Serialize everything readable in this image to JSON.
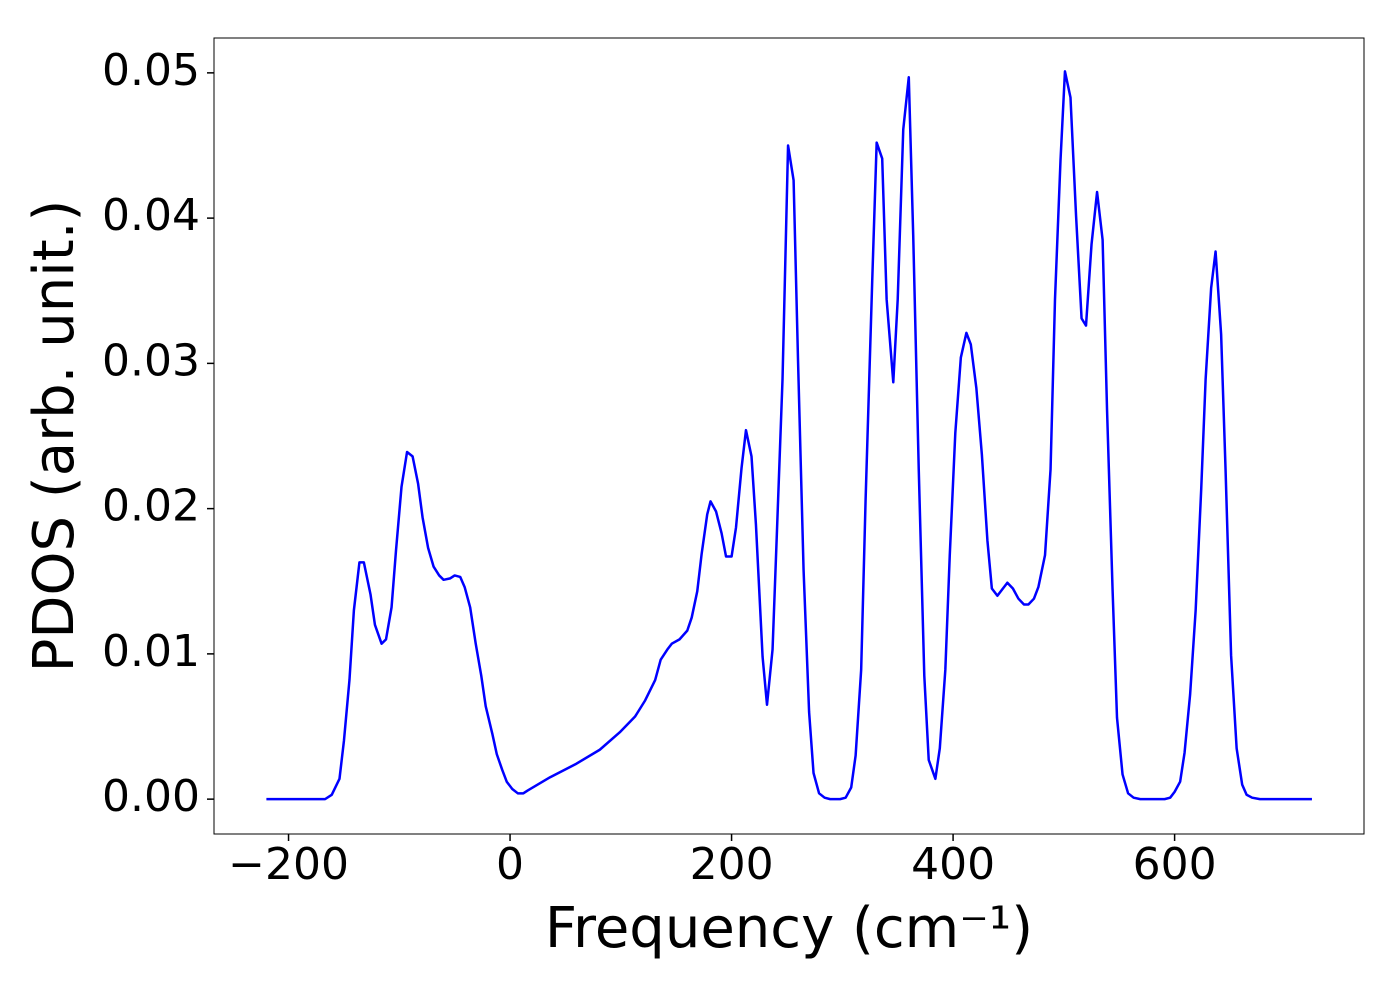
{
  "chart_data": {
    "type": "line",
    "xlabel": "Frequency (cm⁻¹)",
    "ylabel": "PDOS (arb. unit.)",
    "color": "#0000ff",
    "xlim": [
      -267.3,
      771
    ],
    "ylim": [
      -0.0024,
      0.0524
    ],
    "xticks": [
      {
        "value": -200,
        "label": "−200"
      },
      0,
      200,
      400,
      600
    ],
    "yticks": [
      {
        "value": 0,
        "label": "0.00"
      },
      0.01,
      0.02,
      0.03,
      0.04,
      0.05
    ],
    "x": [
      -220,
      -167,
      -161,
      -154,
      -150,
      -145,
      -141,
      -136,
      -132,
      -126,
      -122,
      -116,
      -112,
      -107,
      -103,
      -98,
      -93,
      -88,
      -83,
      -79,
      -74,
      -69,
      -64,
      -60,
      -54,
      -50,
      -45,
      -41,
      -36,
      -31,
      -26,
      -22,
      -16,
      -12,
      -7,
      -3,
      2,
      7,
      12,
      16,
      36,
      59,
      81,
      99,
      113,
      122,
      131,
      136,
      142,
      146,
      153,
      160,
      164,
      169,
      173,
      178,
      181,
      186,
      191,
      195,
      200,
      204,
      209,
      213,
      218,
      222,
      228,
      232,
      237,
      241,
      246,
      251,
      256,
      260,
      265,
      270,
      274,
      279,
      284,
      289,
      298,
      303,
      308,
      312,
      317,
      321,
      327,
      331,
      336,
      340,
      346,
      350,
      355,
      360,
      364,
      369,
      374,
      378,
      384,
      388,
      393,
      397,
      402,
      407,
      412,
      416,
      421,
      426,
      431,
      435,
      440,
      445,
      449,
      454,
      459,
      464,
      468,
      473,
      477,
      483,
      488,
      492,
      497,
      501,
      506,
      511,
      516,
      520,
      525,
      530,
      535,
      539,
      544,
      548,
      553,
      558,
      563,
      569,
      591,
      596,
      600,
      605,
      609,
      614,
      619,
      624,
      628,
      633,
      637,
      642,
      646,
      651,
      656,
      661,
      665,
      670,
      677,
      724
    ],
    "values": [
      0,
      0,
      0.0003,
      0.0014,
      0.004,
      0.0082,
      0.013,
      0.0163,
      0.0163,
      0.0141,
      0.012,
      0.0107,
      0.011,
      0.0132,
      0.0171,
      0.0215,
      0.0239,
      0.0236,
      0.0217,
      0.0194,
      0.0173,
      0.016,
      0.0154,
      0.0151,
      0.0152,
      0.0154,
      0.0153,
      0.0146,
      0.0132,
      0.0107,
      0.0085,
      0.0064,
      0.0045,
      0.0031,
      0.002,
      0.0012,
      0.0007,
      0.0004,
      0.0004,
      0.0006,
      0.0015,
      0.0024,
      0.0034,
      0.0046,
      0.0057,
      0.0068,
      0.0082,
      0.0096,
      0.0103,
      0.0107,
      0.011,
      0.0116,
      0.0125,
      0.0143,
      0.0169,
      0.0196,
      0.0205,
      0.0198,
      0.0183,
      0.0167,
      0.0167,
      0.0187,
      0.0228,
      0.0254,
      0.0236,
      0.0189,
      0.0098,
      0.0065,
      0.0103,
      0.0185,
      0.0289,
      0.045,
      0.0426,
      0.0302,
      0.0158,
      0.006,
      0.0018,
      0.0004,
      0.0001,
      0,
      0,
      0.0001,
      0.0008,
      0.003,
      0.0089,
      0.0206,
      0.0357,
      0.0452,
      0.0441,
      0.0344,
      0.0287,
      0.0344,
      0.0461,
      0.0497,
      0.0388,
      0.0227,
      0.0085,
      0.0027,
      0.0014,
      0.0035,
      0.0089,
      0.0168,
      0.0252,
      0.0304,
      0.0321,
      0.0313,
      0.0283,
      0.0237,
      0.0178,
      0.0145,
      0.014,
      0.0145,
      0.0149,
      0.0145,
      0.0138,
      0.0134,
      0.0134,
      0.0138,
      0.0146,
      0.0168,
      0.0227,
      0.0344,
      0.044,
      0.0501,
      0.0483,
      0.0402,
      0.0331,
      0.0326,
      0.0382,
      0.0418,
      0.0385,
      0.0268,
      0.0144,
      0.0056,
      0.0017,
      0.0004,
      0.0001,
      0,
      0,
      0.0001,
      0.0005,
      0.0012,
      0.0032,
      0.0072,
      0.013,
      0.0213,
      0.0289,
      0.0352,
      0.0377,
      0.032,
      0.0227,
      0.0099,
      0.0035,
      0.001,
      0.0003,
      0.0001,
      0,
      0
    ]
  }
}
